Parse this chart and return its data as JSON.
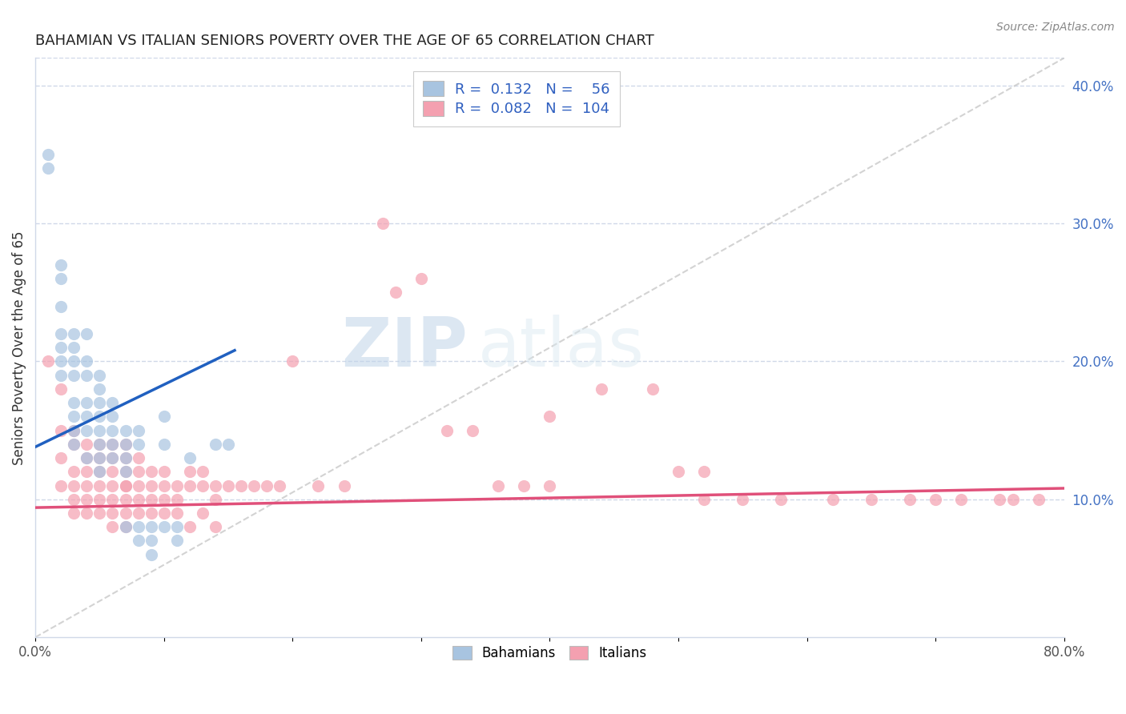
{
  "title": "BAHAMIAN VS ITALIAN SENIORS POVERTY OVER THE AGE OF 65 CORRELATION CHART",
  "source": "Source: ZipAtlas.com",
  "ylabel": "Seniors Poverty Over the Age of 65",
  "xlabel": "",
  "xlim": [
    0.0,
    0.8
  ],
  "ylim": [
    0.0,
    0.42
  ],
  "x_ticks": [
    0.0,
    0.1,
    0.2,
    0.3,
    0.4,
    0.5,
    0.6,
    0.7,
    0.8
  ],
  "x_ticklabels": [
    "0.0%",
    "",
    "",
    "",
    "",
    "",
    "",
    "",
    "80.0%"
  ],
  "y_ticks_right": [
    0.1,
    0.2,
    0.3,
    0.4
  ],
  "y_ticklabels_right": [
    "10.0%",
    "20.0%",
    "30.0%",
    "40.0%"
  ],
  "bahamian_color": "#a8c4e0",
  "italian_color": "#f4a0b0",
  "bahamian_line_color": "#2060c0",
  "italian_line_color": "#e0507a",
  "dashed_line_color": "#c8c8c8",
  "watermark_zip": "ZIP",
  "watermark_atlas": "atlas",
  "legend_R_bah": "0.132",
  "legend_N_bah": "56",
  "legend_R_ita": "0.082",
  "legend_N_ita": "104",
  "bah_line_x": [
    0.0,
    0.155
  ],
  "bah_line_y": [
    0.138,
    0.208
  ],
  "ita_line_x": [
    0.0,
    0.8
  ],
  "ita_line_y": [
    0.094,
    0.108
  ],
  "bahamian_x": [
    0.01,
    0.01,
    0.02,
    0.02,
    0.02,
    0.02,
    0.02,
    0.02,
    0.02,
    0.03,
    0.03,
    0.03,
    0.03,
    0.03,
    0.03,
    0.03,
    0.03,
    0.04,
    0.04,
    0.04,
    0.04,
    0.04,
    0.04,
    0.04,
    0.05,
    0.05,
    0.05,
    0.05,
    0.05,
    0.05,
    0.05,
    0.05,
    0.06,
    0.06,
    0.06,
    0.06,
    0.06,
    0.07,
    0.07,
    0.07,
    0.07,
    0.07,
    0.08,
    0.08,
    0.08,
    0.08,
    0.09,
    0.09,
    0.09,
    0.1,
    0.1,
    0.1,
    0.11,
    0.11,
    0.12,
    0.14,
    0.15
  ],
  "bahamian_y": [
    0.35,
    0.34,
    0.27,
    0.26,
    0.24,
    0.22,
    0.21,
    0.2,
    0.19,
    0.22,
    0.21,
    0.2,
    0.19,
    0.17,
    0.16,
    0.15,
    0.14,
    0.22,
    0.2,
    0.19,
    0.17,
    0.16,
    0.15,
    0.13,
    0.19,
    0.18,
    0.17,
    0.16,
    0.15,
    0.14,
    0.13,
    0.12,
    0.17,
    0.16,
    0.15,
    0.14,
    0.13,
    0.15,
    0.14,
    0.13,
    0.12,
    0.08,
    0.15,
    0.14,
    0.08,
    0.07,
    0.08,
    0.07,
    0.06,
    0.16,
    0.14,
    0.08,
    0.08,
    0.07,
    0.13,
    0.14,
    0.14
  ],
  "italian_x": [
    0.01,
    0.02,
    0.02,
    0.02,
    0.02,
    0.03,
    0.03,
    0.03,
    0.03,
    0.03,
    0.03,
    0.04,
    0.04,
    0.04,
    0.04,
    0.04,
    0.04,
    0.05,
    0.05,
    0.05,
    0.05,
    0.05,
    0.05,
    0.06,
    0.06,
    0.06,
    0.06,
    0.06,
    0.06,
    0.06,
    0.07,
    0.07,
    0.07,
    0.07,
    0.07,
    0.07,
    0.07,
    0.07,
    0.08,
    0.08,
    0.08,
    0.08,
    0.08,
    0.09,
    0.09,
    0.09,
    0.09,
    0.1,
    0.1,
    0.1,
    0.1,
    0.11,
    0.11,
    0.11,
    0.12,
    0.12,
    0.12,
    0.13,
    0.13,
    0.13,
    0.14,
    0.14,
    0.14,
    0.15,
    0.16,
    0.17,
    0.18,
    0.19,
    0.2,
    0.22,
    0.24,
    0.27,
    0.28,
    0.3,
    0.32,
    0.34,
    0.36,
    0.38,
    0.4,
    0.4,
    0.44,
    0.48,
    0.5,
    0.52,
    0.52,
    0.55,
    0.58,
    0.62,
    0.65,
    0.68,
    0.7,
    0.72,
    0.75,
    0.76,
    0.78
  ],
  "italian_y": [
    0.2,
    0.18,
    0.15,
    0.13,
    0.11,
    0.15,
    0.14,
    0.12,
    0.11,
    0.1,
    0.09,
    0.14,
    0.13,
    0.12,
    0.11,
    0.1,
    0.09,
    0.14,
    0.13,
    0.12,
    0.11,
    0.1,
    0.09,
    0.14,
    0.13,
    0.12,
    0.11,
    0.1,
    0.09,
    0.08,
    0.14,
    0.13,
    0.12,
    0.11,
    0.11,
    0.1,
    0.09,
    0.08,
    0.13,
    0.12,
    0.11,
    0.1,
    0.09,
    0.12,
    0.11,
    0.1,
    0.09,
    0.12,
    0.11,
    0.1,
    0.09,
    0.11,
    0.1,
    0.09,
    0.12,
    0.11,
    0.08,
    0.12,
    0.11,
    0.09,
    0.11,
    0.1,
    0.08,
    0.11,
    0.11,
    0.11,
    0.11,
    0.11,
    0.2,
    0.11,
    0.11,
    0.3,
    0.25,
    0.26,
    0.15,
    0.15,
    0.11,
    0.11,
    0.16,
    0.11,
    0.18,
    0.18,
    0.12,
    0.12,
    0.1,
    0.1,
    0.1,
    0.1,
    0.1,
    0.1,
    0.1,
    0.1,
    0.1,
    0.1,
    0.1
  ]
}
